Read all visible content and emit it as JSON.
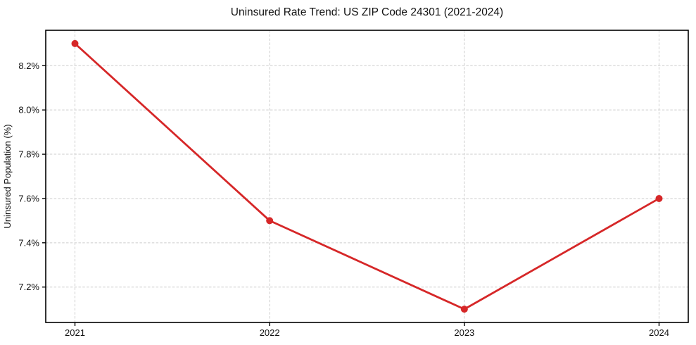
{
  "chart_data": {
    "type": "line",
    "title": "Uninsured Rate Trend: US ZIP Code 24301 (2021-2024)",
    "xlabel": "",
    "ylabel": "Uninsured Population (%)",
    "x": [
      2021,
      2022,
      2023,
      2024
    ],
    "series": [
      {
        "name": "Uninsured rate",
        "values": [
          8.3,
          7.5,
          7.1,
          7.6
        ],
        "color": "#d62728",
        "marker": "circle"
      }
    ],
    "xticks": [
      2021,
      2022,
      2023,
      2024
    ],
    "xtick_labels": [
      "2021",
      "2022",
      "2023",
      "2024"
    ],
    "yticks": [
      7.2,
      7.4,
      7.6,
      7.8,
      8.0,
      8.2
    ],
    "ytick_labels": [
      "7.2%",
      "7.4%",
      "7.6%",
      "7.8%",
      "8.0%",
      "8.2%"
    ],
    "xlim": [
      2020.85,
      2024.15
    ],
    "ylim": [
      7.04,
      8.36
    ],
    "grid": true,
    "grid_style": "dashed",
    "grid_color": "#cdcdcd",
    "line_color": "#d62728",
    "axis_color": "#000000",
    "background_color": "#ffffff",
    "legend": "none"
  }
}
